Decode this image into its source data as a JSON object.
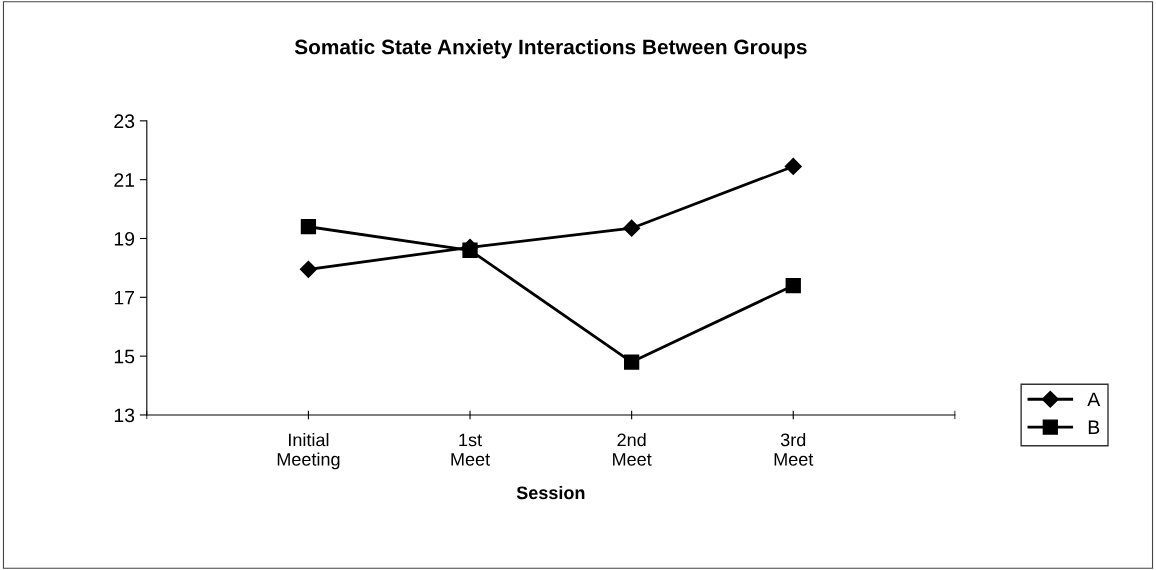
{
  "chart_data": {
    "type": "line",
    "title": "Somatic State Anxiety Interactions Between Groups",
    "xlabel": "Session",
    "categories": [
      "Initial\nMeeting",
      "1st\nMeet",
      "2nd\nMeet",
      "3rd\nMeet"
    ],
    "series": [
      {
        "name": "A",
        "color": "#000000",
        "marker": "diamond",
        "values": [
          17.95,
          18.7,
          19.35,
          21.45
        ]
      },
      {
        "name": "B",
        "color": "#000000",
        "marker": "square",
        "values": [
          19.4,
          18.6,
          14.8,
          17.4
        ]
      }
    ],
    "ylim": [
      13,
      23
    ],
    "yticks": [
      13,
      15,
      17,
      19,
      21,
      23
    ],
    "grid": false,
    "legend": "right",
    "line_style": "solid"
  }
}
